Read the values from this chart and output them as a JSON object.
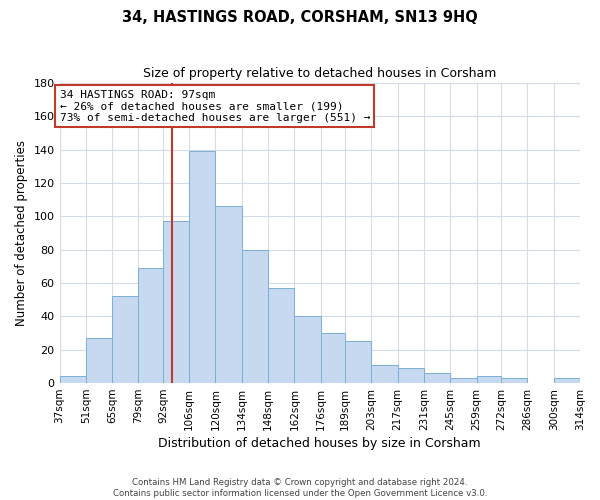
{
  "title": "34, HASTINGS ROAD, CORSHAM, SN13 9HQ",
  "subtitle": "Size of property relative to detached houses in Corsham",
  "xlabel": "Distribution of detached houses by size in Corsham",
  "ylabel": "Number of detached properties",
  "bins": [
    37,
    51,
    65,
    79,
    92,
    106,
    120,
    134,
    148,
    162,
    176,
    189,
    203,
    217,
    231,
    245,
    259,
    272,
    286,
    300,
    314
  ],
  "counts": [
    4,
    27,
    52,
    69,
    97,
    139,
    106,
    80,
    57,
    40,
    30,
    25,
    11,
    9,
    6,
    3,
    4,
    3,
    0,
    3
  ],
  "bar_color": "#c6d9f0",
  "bar_edge_color": "#7bafd4",
  "property_value": 97,
  "vline_color": "#c0392b",
  "annotation_line1": "34 HASTINGS ROAD: 97sqm",
  "annotation_line2": "← 26% of detached houses are smaller (199)",
  "annotation_line3": "73% of semi-detached houses are larger (551) →",
  "annotation_box_color": "#c0392b",
  "ylim": [
    0,
    180
  ],
  "yticks": [
    0,
    20,
    40,
    60,
    80,
    100,
    120,
    140,
    160,
    180
  ],
  "footer_line1": "Contains HM Land Registry data © Crown copyright and database right 2024.",
  "footer_line2": "Contains public sector information licensed under the Open Government Licence v3.0.",
  "background_color": "#ffffff",
  "grid_color": "#d4dce8"
}
